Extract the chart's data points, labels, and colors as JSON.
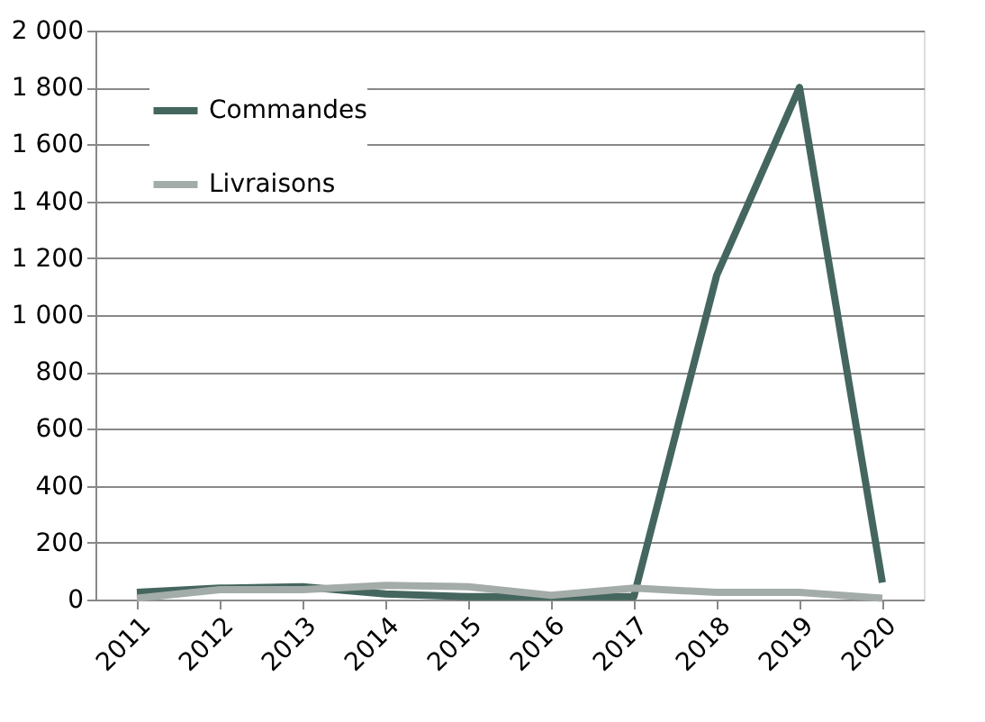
{
  "chart_data": {
    "type": "line",
    "categories": [
      "2011",
      "2012",
      "2013",
      "2014",
      "2015",
      "2016",
      "2017",
      "2018",
      "2019",
      "2020"
    ],
    "series": [
      {
        "name": "Commandes",
        "color": "#44665e",
        "values": [
          25,
          40,
          45,
          20,
          10,
          10,
          10,
          1140,
          1800,
          60
        ]
      },
      {
        "name": "Livraisons",
        "color": "#a3aca8",
        "values": [
          5,
          35,
          35,
          50,
          45,
          15,
          40,
          25,
          25,
          5
        ]
      }
    ],
    "ylim": [
      0,
      2000
    ],
    "yticks": [
      0,
      200,
      400,
      600,
      800,
      {
        "value": 1000,
        "label": "1 000"
      },
      {
        "value": 1200,
        "label": "1 200"
      },
      {
        "value": 1400,
        "label": "1 400"
      },
      {
        "value": 1600,
        "label": "1 600"
      },
      {
        "value": 1800,
        "label": "1 800"
      },
      {
        "value": 2000,
        "label": "2 000"
      }
    ],
    "grid": "y",
    "legend": "top left",
    "marker": "none",
    "line_style": "solid"
  }
}
